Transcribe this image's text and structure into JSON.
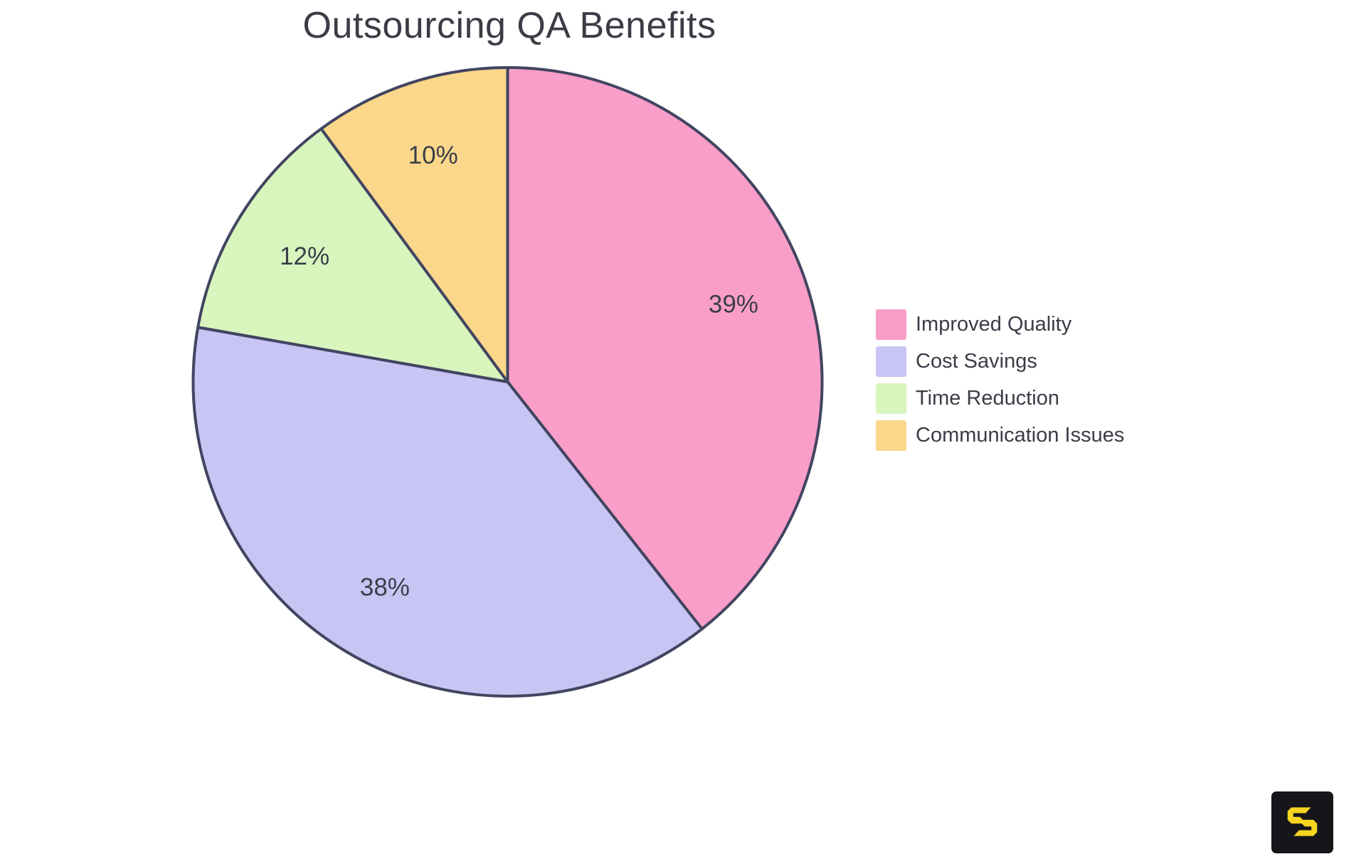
{
  "chart_data": {
    "type": "pie",
    "title": "Outsourcing QA Benefits",
    "labels": [
      "Improved Quality",
      "Cost Savings",
      "Time Reduction",
      "Communication Issues"
    ],
    "values": [
      39,
      38,
      12,
      10
    ],
    "percent_labels": [
      "39%",
      "38%",
      "12%",
      "10%"
    ],
    "colors": [
      "#F99EC8",
      "#C8C5F4",
      "#D8F5BE",
      "#FAD78B"
    ],
    "slice_stroke_color": "#424560",
    "percent_label_color": "#3A3E49",
    "title_color": "#3A3D45",
    "start_angle": "top",
    "direction": "clockwise",
    "legend_position": "right",
    "background": "#FFFFFF"
  },
  "legend": {
    "items": [
      {
        "label": "Improved Quality",
        "color": "#F99EC8"
      },
      {
        "label": "Cost Savings",
        "color": "#C8C5F4"
      },
      {
        "label": "Time Reduction",
        "color": "#D8F5BE"
      },
      {
        "label": "Communication Issues",
        "color": "#FAD78B"
      }
    ],
    "text_color": "#3A3D47"
  },
  "watermark": {
    "icon": "s-logo-icon",
    "background_color": "#16161A",
    "icon_color": "#F5D520"
  }
}
